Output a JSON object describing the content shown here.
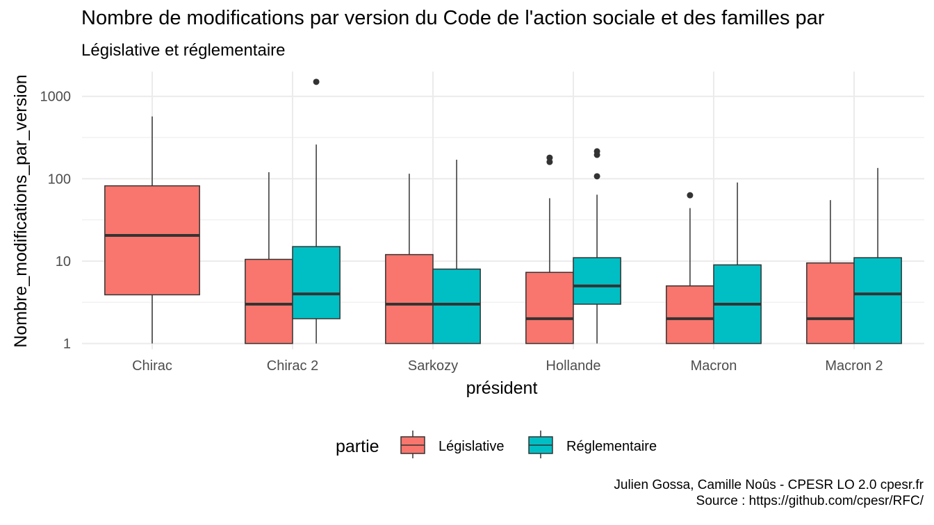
{
  "title": "Nombre de modifications par version du Code de l'action sociale et des familles par",
  "subtitle": "Législative et réglementaire",
  "caption": {
    "line1": "Julien Gossa, Camille Noûs - CPESR LO 2.0 cpesr.fr",
    "line2": "Source : https://github.com/cpesr/RFC/"
  },
  "chart_data": {
    "type": "boxplot",
    "xlabel": "président",
    "ylabel": "Nombre_modifications_par_version",
    "yscale": "log10",
    "ylim": [
      0.85,
      2000
    ],
    "yticks": [
      1,
      10,
      100,
      1000
    ],
    "ytick_labels": [
      "1",
      "10",
      "100",
      "1000"
    ],
    "grid": true,
    "categories": [
      "Chirac",
      "Chirac 2",
      "Sarkozy",
      "Hollande",
      "Macron",
      "Macron 2"
    ],
    "legend": {
      "title": "partie",
      "position": "bottom"
    },
    "series": [
      {
        "name": "Législative",
        "color": "#F8766D",
        "boxes": [
          {
            "category": "Chirac",
            "min": 1,
            "q1": 3.9,
            "median": 20.5,
            "q3": 82,
            "max": 570,
            "outliers": []
          },
          {
            "category": "Chirac 2",
            "min": 1,
            "q1": 1,
            "median": 3,
            "q3": 10.5,
            "max": 120,
            "outliers": []
          },
          {
            "category": "Sarkozy",
            "min": 1,
            "q1": 1,
            "median": 3,
            "q3": 12,
            "max": 115,
            "outliers": []
          },
          {
            "category": "Hollande",
            "min": 1,
            "q1": 1,
            "median": 2,
            "q3": 7.3,
            "max": 58,
            "outliers": [
              160,
              180
            ]
          },
          {
            "category": "Macron",
            "min": 1,
            "q1": 1,
            "median": 2,
            "q3": 5,
            "max": 44,
            "outliers": [
              63
            ]
          },
          {
            "category": "Macron 2",
            "min": 1,
            "q1": 1,
            "median": 2,
            "q3": 9.5,
            "max": 55,
            "outliers": []
          }
        ]
      },
      {
        "name": "Réglementaire",
        "color": "#00BFC4",
        "boxes": [
          {
            "category": "Chirac 2",
            "min": 1,
            "q1": 2,
            "median": 4,
            "q3": 15,
            "max": 260,
            "outliers": [
              1500
            ]
          },
          {
            "category": "Sarkozy",
            "min": 1,
            "q1": 1,
            "median": 3,
            "q3": 8,
            "max": 170,
            "outliers": []
          },
          {
            "category": "Hollande",
            "min": 1,
            "q1": 3,
            "median": 5,
            "q3": 11,
            "max": 64,
            "outliers": [
              107,
              195,
              215
            ]
          },
          {
            "category": "Macron",
            "min": 1,
            "q1": 1,
            "median": 3,
            "q3": 9,
            "max": 90,
            "outliers": []
          },
          {
            "category": "Macron 2",
            "min": 1,
            "q1": 1,
            "median": 4,
            "q3": 11,
            "max": 135,
            "outliers": []
          }
        ]
      }
    ]
  }
}
